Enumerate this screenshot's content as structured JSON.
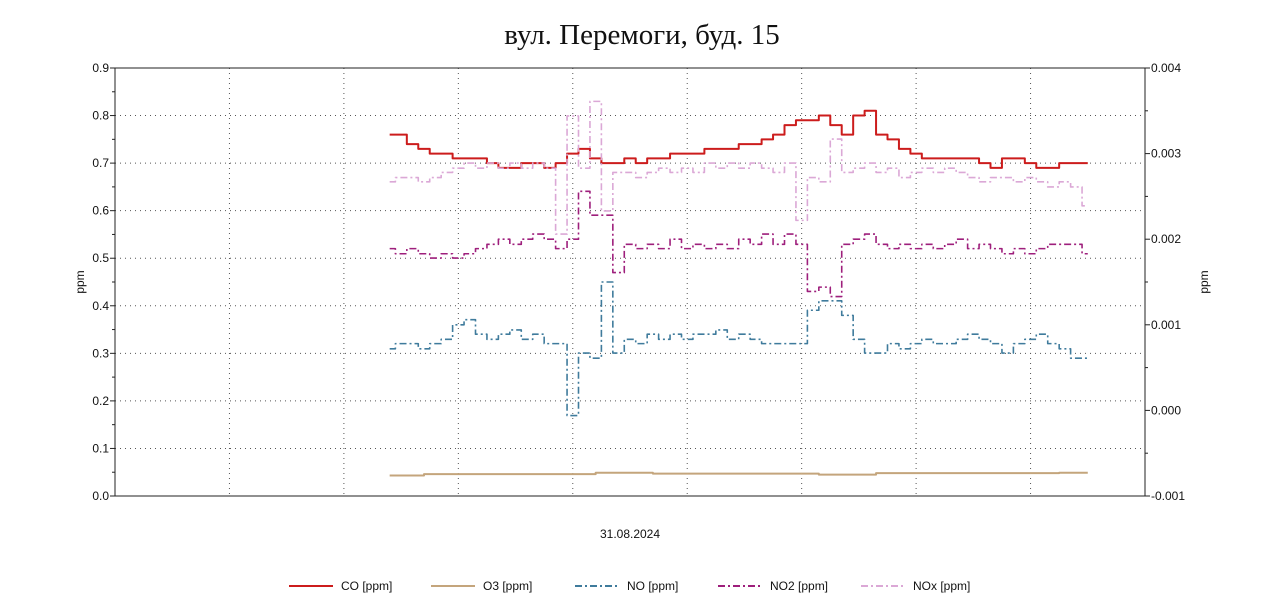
{
  "chart_data": {
    "type": "line",
    "title": "вул. Перемоги, буд. 15",
    "xlabel": "31.08.2024",
    "ylabel_left": "ppm",
    "ylabel_right": "ppm",
    "xlim": [
      0,
      90
    ],
    "ylim_left": [
      0,
      0.9
    ],
    "ylim_right": [
      -0.001,
      0.004
    ],
    "yticks_left": [
      "0.0",
      "0.1",
      "0.2",
      "0.3",
      "0.4",
      "0.5",
      "0.6",
      "0.7",
      "0.8",
      "0.9"
    ],
    "yticks_right": [
      "-0.001",
      "0.000",
      "0.001",
      "0.002",
      "0.003",
      "0.004"
    ],
    "grid": true,
    "legend_position": "bottom",
    "series": [
      {
        "name": "CO [ppm]",
        "axis": "left",
        "color": "#cc1c1c",
        "style": "solid",
        "x_start": 24,
        "values": [
          0.76,
          0.76,
          0.74,
          0.73,
          0.72,
          0.72,
          0.71,
          0.71,
          0.71,
          0.7,
          0.69,
          0.69,
          0.7,
          0.7,
          0.69,
          0.7,
          0.72,
          0.73,
          0.71,
          0.7,
          0.7,
          0.71,
          0.7,
          0.71,
          0.71,
          0.72,
          0.72,
          0.72,
          0.73,
          0.73,
          0.73,
          0.74,
          0.74,
          0.75,
          0.76,
          0.78,
          0.79,
          0.79,
          0.8,
          0.78,
          0.76,
          0.8,
          0.81,
          0.76,
          0.75,
          0.73,
          0.72,
          0.71,
          0.71,
          0.71,
          0.71,
          0.71,
          0.7,
          0.69,
          0.71,
          0.71,
          0.7,
          0.69,
          0.69,
          0.7,
          0.7,
          0.7
        ]
      },
      {
        "name": "O3 [ppm]",
        "axis": "left",
        "color": "#c4a57c",
        "style": "solid",
        "x": [
          24,
          30,
          40,
          44,
          50,
          60,
          63,
          70,
          80,
          85
        ],
        "values": [
          0.043,
          0.046,
          0.046,
          0.049,
          0.047,
          0.047,
          0.045,
          0.048,
          0.048,
          0.049
        ]
      },
      {
        "name": "NO [ppm]",
        "axis": "right",
        "color": "#3f7b9c",
        "style": "dashdot",
        "x_start": 24,
        "values": [
          0.00072,
          0.00078,
          0.00078,
          0.00072,
          0.00078,
          0.00083,
          0.001,
          0.00106,
          0.00089,
          0.00083,
          0.00089,
          0.00094,
          0.00083,
          0.00089,
          0.00078,
          0.00078,
          -6e-05,
          0.00067,
          0.00061,
          0.0015,
          0.00067,
          0.00083,
          0.00078,
          0.00089,
          0.00083,
          0.00089,
          0.00083,
          0.00089,
          0.00089,
          0.00094,
          0.00083,
          0.00089,
          0.00083,
          0.00078,
          0.00078,
          0.00078,
          0.00078,
          0.00117,
          0.00128,
          0.00128,
          0.00111,
          0.00083,
          0.00067,
          0.00067,
          0.00078,
          0.00072,
          0.00078,
          0.00083,
          0.00078,
          0.00078,
          0.00083,
          0.00089,
          0.00083,
          0.00078,
          0.00067,
          0.00078,
          0.00083,
          0.00089,
          0.00078,
          0.00072,
          0.00061,
          0.00061
        ]
      },
      {
        "name": "NO2 [ppm]",
        "axis": "right",
        "color": "#9e1f7c",
        "style": "dashdot",
        "x_start": 24,
        "values": [
          0.00189,
          0.00183,
          0.00189,
          0.00183,
          0.00178,
          0.00183,
          0.00178,
          0.00183,
          0.00189,
          0.00194,
          0.002,
          0.00194,
          0.002,
          0.00206,
          0.002,
          0.00189,
          0.002,
          0.00256,
          0.00228,
          0.00228,
          0.00161,
          0.00194,
          0.00189,
          0.00194,
          0.00189,
          0.002,
          0.00189,
          0.00194,
          0.00189,
          0.00194,
          0.00189,
          0.002,
          0.00194,
          0.00206,
          0.00194,
          0.00206,
          0.00194,
          0.00139,
          0.00144,
          0.00133,
          0.00194,
          0.002,
          0.00206,
          0.00194,
          0.00189,
          0.00194,
          0.00189,
          0.00194,
          0.00189,
          0.00194,
          0.002,
          0.00189,
          0.00194,
          0.00189,
          0.00183,
          0.00189,
          0.00183,
          0.00189,
          0.00194,
          0.00194,
          0.00194,
          0.00183
        ]
      },
      {
        "name": "NOx [ppm]",
        "axis": "right",
        "color": "#dba8d6",
        "style": "dashdot",
        "x_start": 24,
        "values": [
          0.00267,
          0.00272,
          0.00272,
          0.00267,
          0.00272,
          0.00278,
          0.00283,
          0.00289,
          0.00283,
          0.00289,
          0.00283,
          0.00289,
          0.00283,
          0.00289,
          0.00283,
          0.00206,
          0.00344,
          0.00283,
          0.00361,
          0.00233,
          0.00278,
          0.00278,
          0.00272,
          0.00278,
          0.00283,
          0.00278,
          0.00283,
          0.00278,
          0.00289,
          0.00283,
          0.00289,
          0.00283,
          0.00289,
          0.00283,
          0.00278,
          0.00289,
          0.00222,
          0.00272,
          0.00267,
          0.00317,
          0.00278,
          0.00283,
          0.00289,
          0.00278,
          0.00283,
          0.00272,
          0.00278,
          0.00283,
          0.00278,
          0.00283,
          0.00278,
          0.00272,
          0.00267,
          0.00272,
          0.00272,
          0.00267,
          0.00272,
          0.00267,
          0.00261,
          0.00267,
          0.00261,
          0.00239
        ]
      }
    ]
  }
}
